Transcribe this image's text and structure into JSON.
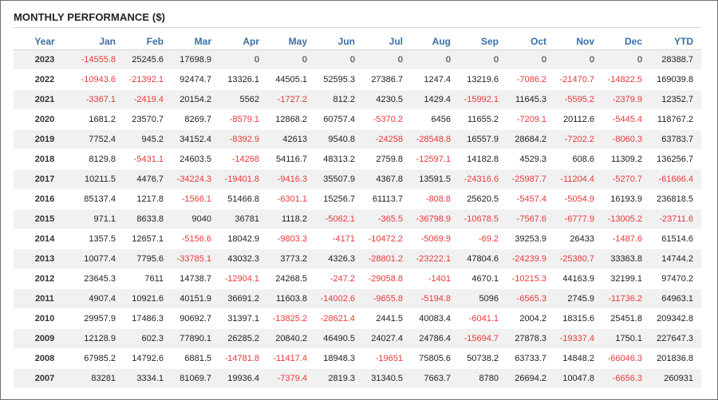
{
  "title": "MONTHLY PERFORMANCE ($)",
  "colors": {
    "header_text": "#3b6ea5",
    "negative": "#e8393b",
    "positive": "#222222",
    "stripe": "#f1f1f1"
  },
  "columns": [
    "Year",
    "Jan",
    "Feb",
    "Mar",
    "Apr",
    "May",
    "Jun",
    "Jul",
    "Aug",
    "Sep",
    "Oct",
    "Nov",
    "Dec",
    "YTD"
  ],
  "rows": [
    [
      "2023",
      "-14555.8",
      "25245.6",
      "17698.9",
      "0",
      "0",
      "0",
      "0",
      "0",
      "0",
      "0",
      "0",
      "0",
      "28388.7"
    ],
    [
      "2022",
      "-10943.6",
      "-21392.1",
      "92474.7",
      "13326.1",
      "44505.1",
      "52595.3",
      "27386.7",
      "1247.4",
      "13219.6",
      "-7086.2",
      "-21470.7",
      "-14822.5",
      "169039.8"
    ],
    [
      "2021",
      "-3367.1",
      "-2419.4",
      "20154.2",
      "5562",
      "-1727.2",
      "812.2",
      "4230.5",
      "1429.4",
      "-15992.1",
      "11645.3",
      "-5595.2",
      "-2379.9",
      "12352.7"
    ],
    [
      "2020",
      "1681.2",
      "23570.7",
      "8269.7",
      "-8579.1",
      "12868.2",
      "60757.4",
      "-5370.2",
      "6456",
      "11655.2",
      "-7209.1",
      "20112.6",
      "-5445.4",
      "118767.2"
    ],
    [
      "2019",
      "7752.4",
      "945.2",
      "34152.4",
      "-8392.9",
      "42613",
      "9540.8",
      "-24258",
      "-28548.8",
      "16557.9",
      "28684.2",
      "-7202.2",
      "-8060.3",
      "63783.7"
    ],
    [
      "2018",
      "8129.8",
      "-5431.1",
      "24603.5",
      "-14268",
      "54116.7",
      "48313.2",
      "2759.8",
      "-12597.1",
      "14182.8",
      "4529.3",
      "608.6",
      "11309.2",
      "136256.7"
    ],
    [
      "2017",
      "10211.5",
      "4476.7",
      "-34224.3",
      "-19401.8",
      "-9416.3",
      "35507.9",
      "4367.8",
      "13591.5",
      "-24316.6",
      "-25987.7",
      "-11204.4",
      "-5270.7",
      "-61666.4"
    ],
    [
      "2016",
      "85137.4",
      "1217.8",
      "-1566.1",
      "51466.8",
      "-6301.1",
      "15256.7",
      "61113.7",
      "-808.8",
      "25620.5",
      "-5457.4",
      "-5054.9",
      "16193.9",
      "236818.5"
    ],
    [
      "2015",
      "971.1",
      "8633.8",
      "9040",
      "36781",
      "1118.2",
      "-5062.1",
      "-365.5",
      "-36798.9",
      "-10678.5",
      "-7567.6",
      "-6777.9",
      "-13005.2",
      "-23711.6"
    ],
    [
      "2014",
      "1357.5",
      "12657.1",
      "-5156.6",
      "18042.9",
      "-9803.3",
      "-4171",
      "-10472.2",
      "-5069.9",
      "-69.2",
      "39253.9",
      "26433",
      "-1487.6",
      "61514.6"
    ],
    [
      "2013",
      "10077.4",
      "7795.6",
      "-33785.1",
      "43032.3",
      "3773.2",
      "4326.3",
      "-28801.2",
      "-23222.1",
      "47804.6",
      "-24239.9",
      "-25380.7",
      "33363.8",
      "14744.2"
    ],
    [
      "2012",
      "23645.3",
      "7611",
      "14738.7",
      "-12904.1",
      "24268.5",
      "-247.2",
      "-29058.8",
      "-1401",
      "4670.1",
      "-10215.3",
      "44163.9",
      "32199.1",
      "97470.2"
    ],
    [
      "2011",
      "4907.4",
      "10921.6",
      "40151.9",
      "36691.2",
      "11603.8",
      "-14002.6",
      "-9655.8",
      "-5194.8",
      "5096",
      "-6565.3",
      "2745.9",
      "-11736.2",
      "64963.1"
    ],
    [
      "2010",
      "29957.9",
      "17486.3",
      "90692.7",
      "31397.1",
      "-13825.2",
      "-28621.4",
      "2441.5",
      "40083.4",
      "-6041.1",
      "2004.2",
      "18315.6",
      "25451.8",
      "209342.8"
    ],
    [
      "2009",
      "12128.9",
      "602.3",
      "77890.1",
      "26285.2",
      "20840.2",
      "46490.5",
      "24027.4",
      "24786.4",
      "-15694.7",
      "27878.3",
      "-19337.4",
      "1750.1",
      "227647.3"
    ],
    [
      "2008",
      "67985.2",
      "14792.6",
      "6881.5",
      "-14781.8",
      "-11417.4",
      "18948.3",
      "-19651",
      "75805.6",
      "50738.2",
      "63733.7",
      "14848.2",
      "-66046.3",
      "201836.8"
    ],
    [
      "2007",
      "83281",
      "3334.1",
      "81069.7",
      "19936.4",
      "-7379.4",
      "2819.3",
      "31340.5",
      "7663.7",
      "8780",
      "26694.2",
      "10047.8",
      "-6656.3",
      "260931"
    ]
  ]
}
